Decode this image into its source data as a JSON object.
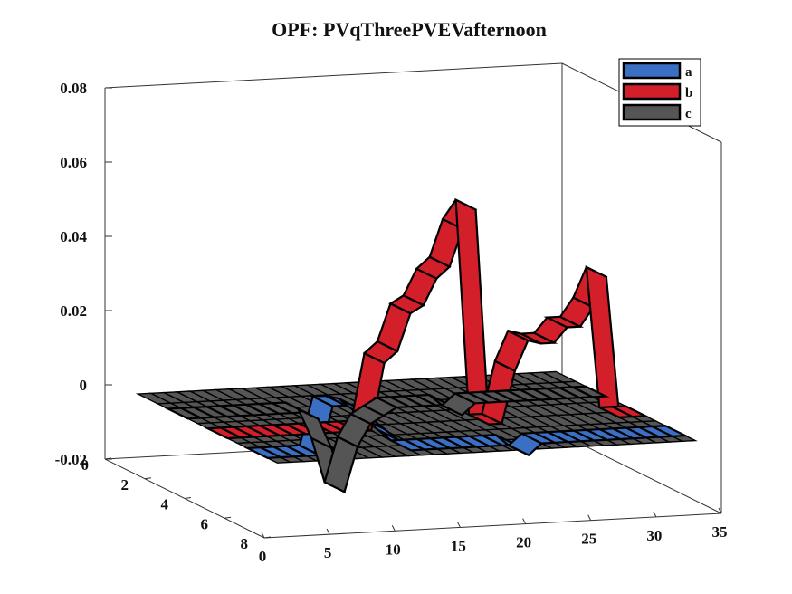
{
  "chart_data": {
    "type": "area",
    "title": "OPF: PVqThreePVEVafternoon",
    "xlabel": "",
    "ylabel": "",
    "zlabel": "",
    "x_ticks": [
      "0",
      "5",
      "10",
      "15",
      "20",
      "25",
      "30",
      "35"
    ],
    "y_ticks": [
      "0",
      "2",
      "4",
      "6",
      "8"
    ],
    "z_ticks": [
      "-0.02",
      "0",
      "0.02",
      "0.04",
      "0.06",
      "0.08"
    ],
    "xlim": [
      0,
      35
    ],
    "ylim": [
      0,
      8
    ],
    "zlim": [
      -0.02,
      0.08
    ],
    "grid": false,
    "legend_position": "top-right",
    "x": [
      1,
      2,
      3,
      4,
      5,
      6,
      7,
      8,
      9,
      10,
      11,
      12,
      13,
      14,
      15,
      16,
      17,
      18,
      19,
      20,
      21,
      22,
      23,
      24,
      25,
      26,
      27,
      28,
      29,
      30,
      31,
      32,
      33
    ],
    "series": [
      {
        "name": "a",
        "color": "#3b6fc4",
        "values": [
          0,
          0,
          0,
          0,
          0,
          0.013,
          0.013,
          0.012,
          0.009,
          0.006,
          0.003,
          0,
          0,
          0,
          0,
          0,
          0,
          0,
          0,
          0,
          -0.003,
          0,
          0,
          0,
          0,
          0,
          0,
          0,
          0,
          0,
          0,
          0,
          0
        ]
      },
      {
        "name": "b",
        "color": "#d21f2a",
        "values": [
          0,
          0,
          0,
          0,
          0,
          0,
          0,
          0,
          0,
          0,
          0,
          0,
          0.018,
          0.021,
          0.031,
          0.033,
          0.04,
          0.043,
          0.053,
          0.058,
          0,
          0,
          0.014,
          0.022,
          0.021,
          0.021,
          0.025,
          0.025,
          0.03,
          0.038,
          0,
          0,
          0
        ]
      },
      {
        "name": "c",
        "color": "#555555",
        "values": [
          0,
          0,
          0,
          0,
          0,
          0,
          0,
          0,
          0,
          0,
          -0.002,
          -0.01,
          -0.022,
          -0.01,
          -0.004,
          -0.002,
          0,
          0,
          0,
          0,
          0,
          -0.003,
          0,
          0,
          0,
          0,
          0,
          0,
          0,
          0,
          0,
          0,
          0
        ]
      }
    ]
  }
}
